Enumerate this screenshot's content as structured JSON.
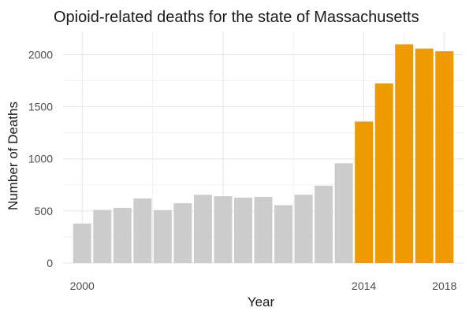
{
  "chart_data": {
    "type": "bar",
    "title": "Opioid-related deaths for the state of Massachusetts",
    "xlabel": "Year",
    "ylabel": "Number of Deaths",
    "x": [
      2000,
      2001,
      2002,
      2003,
      2004,
      2005,
      2006,
      2007,
      2008,
      2009,
      2010,
      2011,
      2012,
      2013,
      2014,
      2015,
      2016,
      2017,
      2018
    ],
    "values": [
      379,
      510,
      530,
      620,
      508,
      574,
      655,
      642,
      628,
      635,
      555,
      656,
      742,
      958,
      1358,
      1724,
      2099,
      2059,
      2033
    ],
    "highlight_from": 2014,
    "colors": {
      "base": "#cccccc",
      "highlight": "#ee9a00"
    },
    "ylim": [
      0,
      2200
    ],
    "y_ticks": [
      0,
      500,
      1000,
      1500,
      2000
    ],
    "x_tick_labels": [
      {
        "value": 2000,
        "label": "2000"
      },
      {
        "value": 2014,
        "label": "2014"
      },
      {
        "value": 2018,
        "label": "2018"
      }
    ],
    "grid": true,
    "legend": "none"
  }
}
